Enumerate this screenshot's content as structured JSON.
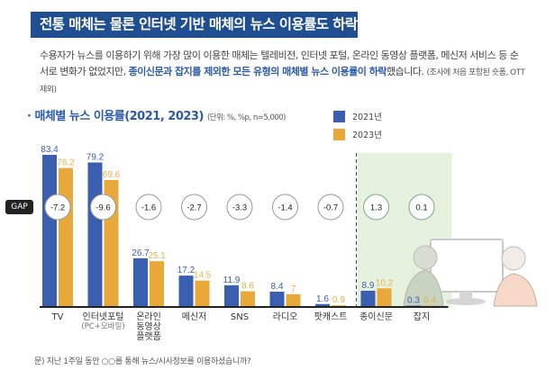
{
  "header": {
    "title": "전통 매체는 물론 인터넷 기반 매체의 뉴스 이용률도 하락",
    "desc_part1": "수용자가 뉴스를 이용하기 위해 가장 많이 이용한 매체는 텔레비전, 인터넷 포털, 온라인 동영상 플랫폼, 메신저 서비스 등 순서로 변화가 없었지만, ",
    "desc_highlight": "종이신문과 잡지를 제외한 모든 유형의 매체별 뉴스 이용률이 하락",
    "desc_part2": "했습니다. ",
    "desc_note": "(조사에 처음 포함된 숏폼, OTT 제외)"
  },
  "footnote": "문) 지난 1주일 동안 ○○를 통해 뉴스/시사정보를 이용하셨습니까?",
  "colors": {
    "series_2021": "#3a5fb0",
    "series_2023": "#e8a93a",
    "label_2021": "#3a5fb0",
    "label_2023": "#e3b04a",
    "title_bg": "#1f4f91",
    "highlight_bg": "#e6f2de"
  },
  "chart_data": {
    "type": "bar",
    "title": "매체별 뉴스 이용률(2021, 2023)",
    "unit_note": "(단위: %, %p, n=5,000)",
    "gap_label": "GAP",
    "categories": [
      "TV",
      "인터넷포털",
      "온라인\n동영상\n플랫폼",
      "메신저",
      "SNS",
      "라디오",
      "팟캐스트",
      "종이신문",
      "잡지"
    ],
    "category_subs": [
      "",
      "(PC+모바일)",
      "",
      "",
      "",
      "",
      "",
      "",
      ""
    ],
    "series": [
      {
        "name": "2021년",
        "values": [
          83.4,
          79.2,
          26.7,
          17.2,
          11.9,
          8.4,
          1.6,
          8.9,
          0.3
        ]
      },
      {
        "name": "2023년",
        "values": [
          76.2,
          69.6,
          25.1,
          14.5,
          8.6,
          7,
          0.9,
          10.2,
          0.4
        ]
      }
    ],
    "value_labels_2021": [
      "83.4",
      "79.2",
      "26.7",
      "17.2",
      "11.9",
      "8.4",
      "1.6",
      "8.9",
      "0.3"
    ],
    "value_labels_2023": [
      "76.2",
      "69.6",
      "25.1",
      "14.5",
      "8.6",
      "7",
      "0.9",
      "10.2",
      "0.4"
    ],
    "gaps": [
      "-7.2",
      "-9.6",
      "-1.6",
      "-2.7",
      "-3.3",
      "-1.4",
      "-0.7",
      "1.3",
      "0.1"
    ],
    "highlighted_categories": [
      "종이신문",
      "잡지"
    ],
    "ylim": [
      0,
      90
    ],
    "legend": "top-right"
  }
}
